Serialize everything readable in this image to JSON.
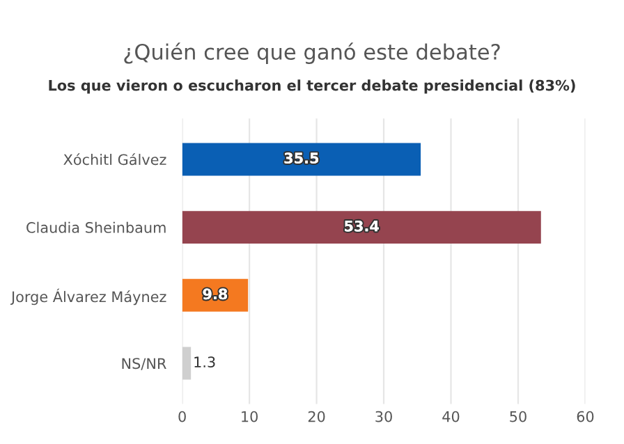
{
  "chart_data": {
    "type": "bar",
    "orientation": "horizontal",
    "title": "¿Quién cree que ganó este debate?",
    "subtitle": "Los que vieron o escucharon el tercer debate presidencial (83%)",
    "categories": [
      "Xóchitl Gálvez",
      "Claudia Sheinbaum",
      "Jorge Álvarez Máynez",
      "NS/NR"
    ],
    "values": [
      35.5,
      53.4,
      9.8,
      1.3
    ],
    "colors": [
      "#0a5fb4",
      "#95444f",
      "#f47920",
      "#cfcfcf"
    ],
    "xlim": [
      0,
      60
    ],
    "xticks": [
      0,
      10,
      20,
      30,
      40,
      50,
      60
    ],
    "grid": "x",
    "data_labels": true
  }
}
